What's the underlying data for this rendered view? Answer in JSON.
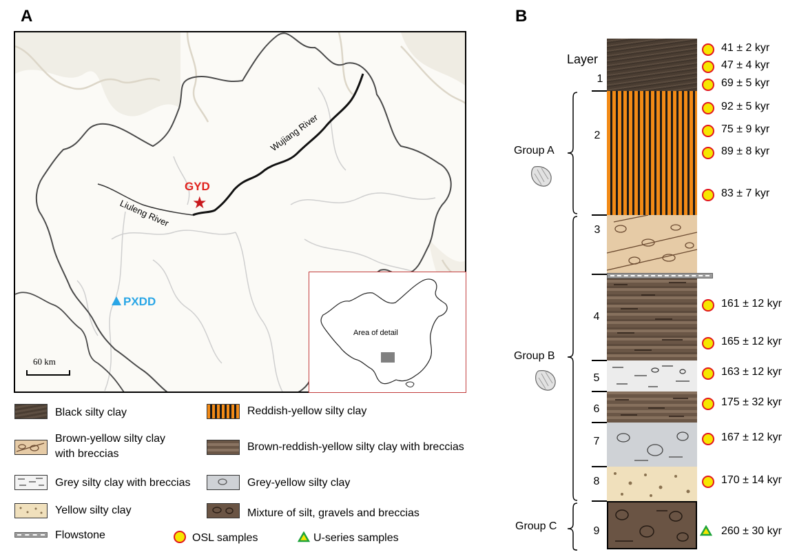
{
  "panels": {
    "a": "A",
    "b": "B"
  },
  "map": {
    "rivers": {
      "wujiang": "Wujiang River",
      "liuleng": "Liuleng River"
    },
    "sites": {
      "gyd": "GYD",
      "pxdd": "PXDD"
    },
    "scale_label": "60 km",
    "inset_label": "Area of detail",
    "colors": {
      "gyd": "#e0201c",
      "pxdd": "#2aa6e6",
      "inset_border": "#c23b3b"
    }
  },
  "legend": {
    "black": "Black silty clay",
    "reddish": "Reddish-yellow silty clay",
    "brown_yellow_1": "Brown-yellow silty clay",
    "brown_yellow_2": "with breccias",
    "brown_reddish": "Brown-reddish-yellow silty clay with breccias",
    "grey": "Grey silty clay with breccias",
    "grey_yellow": "Grey-yellow silty clay",
    "yellow": "Yellow silty clay",
    "mixture": "Mixture of silt, gravels and breccias",
    "flowstone": "Flowstone",
    "osl": "OSL samples",
    "useries": "U-series samples"
  },
  "column": {
    "layer_title": "Layer",
    "layers": [
      "1",
      "2",
      "3",
      "4",
      "5",
      "6",
      "7",
      "8",
      "9"
    ],
    "groups": {
      "a": "Group A",
      "b": "Group B",
      "c": "Group C"
    },
    "ages": [
      "41 ± 2 kyr",
      "47 ± 4 kyr",
      "69 ± 5 kyr",
      "92 ± 5 kyr",
      "75 ± 9 kyr",
      "89 ± 8 kyr",
      "83 ± 7 kyr",
      "161 ± 12 kyr",
      "165 ± 12 kyr",
      "163 ± 12 kyr",
      "175 ± 32 kyr",
      "167 ± 12 kyr",
      "170 ± 14 kyr",
      "260 ± 30 kyr"
    ]
  }
}
